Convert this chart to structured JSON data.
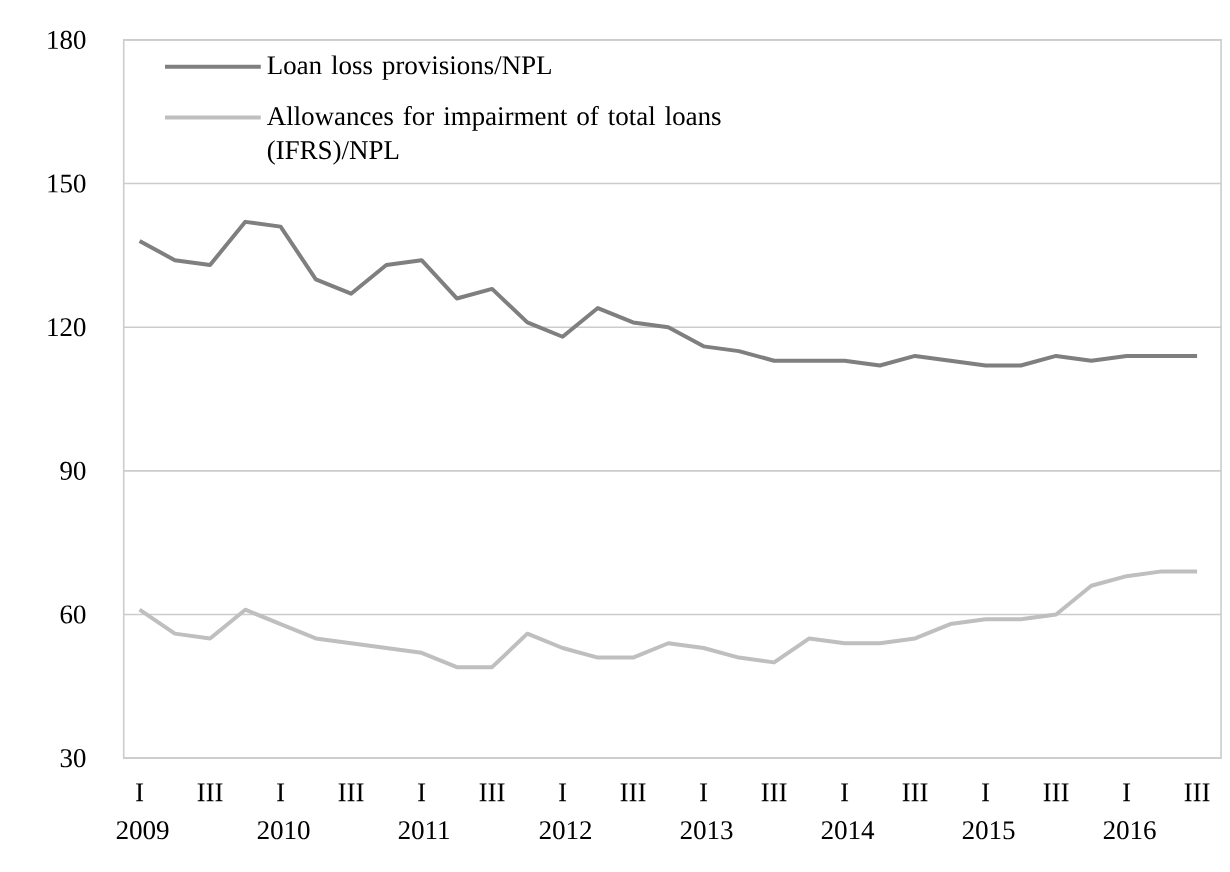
{
  "chart_data": {
    "type": "line",
    "categories": [
      "I 2009",
      null,
      "III",
      null,
      "I 2010",
      null,
      "III",
      null,
      "I 2011",
      null,
      "III",
      null,
      "I 2012",
      null,
      "III",
      null,
      "I 2013",
      null,
      "III",
      null,
      "I 2014",
      null,
      "III",
      null,
      "I 2015",
      null,
      "III",
      null,
      "I 2016",
      null,
      "III"
    ],
    "series": [
      {
        "name": "Loan loss provisions/NPL",
        "color": "#7f7f7f",
        "values": [
          138,
          134,
          133,
          142,
          141,
          130,
          127,
          133,
          134,
          126,
          128,
          121,
          118,
          124,
          121,
          120,
          116,
          115,
          113,
          113,
          113,
          112,
          114,
          113,
          112,
          112,
          114,
          113,
          114,
          114,
          114
        ]
      },
      {
        "name": "Allowances for impairment of total loans (IFRS)/NPL",
        "color": "#bfbfbf",
        "values": [
          61,
          56,
          55,
          61,
          58,
          55,
          54,
          53,
          52,
          49,
          49,
          56,
          53,
          51,
          51,
          54,
          53,
          51,
          50,
          55,
          54,
          54,
          55,
          58,
          59,
          59,
          60,
          66,
          68,
          69,
          69
        ]
      }
    ],
    "ylim": [
      30,
      180
    ],
    "yticks": [
      30,
      60,
      90,
      120,
      150,
      180
    ],
    "grid": "y",
    "legend": "top left",
    "marker": "none",
    "line_style": "solid"
  }
}
